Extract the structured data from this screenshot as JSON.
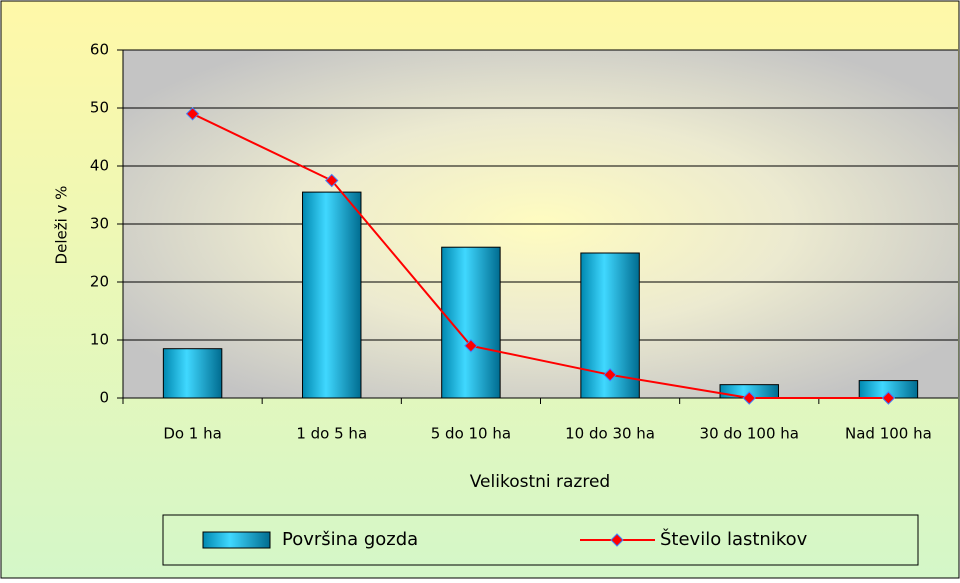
{
  "chart_data": {
    "type": "bar",
    "x_label": "Velikostni razred",
    "y_label": "Deleži v %",
    "categories": [
      "Do 1 ha",
      "1 do 5 ha",
      "5 do 10 ha",
      "10 do 30 ha",
      "30 do 100 ha",
      "Nad 100 ha"
    ],
    "series": [
      {
        "name": "Površina gozda",
        "type": "bar",
        "color": "#00b4e0",
        "values": [
          8.5,
          35.5,
          26,
          25,
          2.3,
          3
        ]
      },
      {
        "name": "Število lastnikov",
        "type": "line",
        "color": "#ff0000",
        "values": [
          49,
          37.5,
          9,
          4,
          0,
          0
        ]
      }
    ],
    "ylim": [
      0,
      60
    ],
    "yticks": [
      0,
      10,
      20,
      30,
      40,
      50,
      60
    ],
    "grid": true,
    "legend": "bottom"
  }
}
